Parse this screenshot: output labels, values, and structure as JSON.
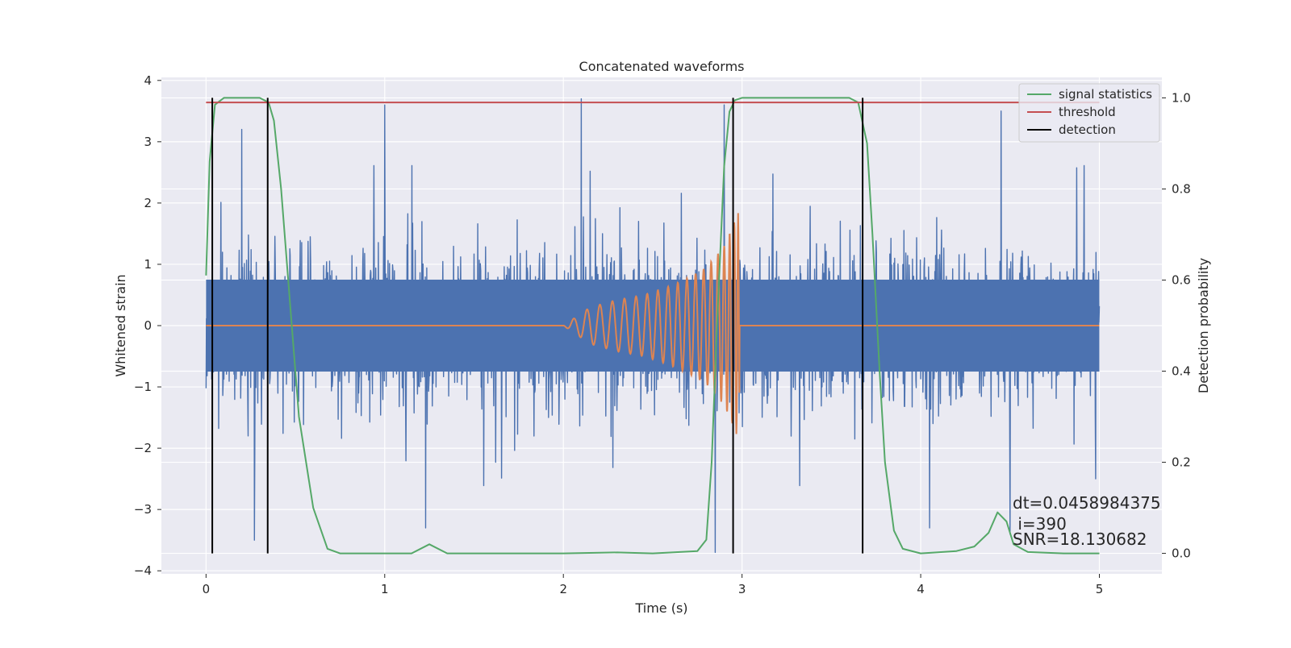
{
  "chart_data": {
    "type": "line",
    "title": "Concatenated waveforms",
    "xlabel": "Time (s)",
    "ylabel_left": "Whitened strain",
    "ylabel_right": "Detection probability",
    "xlim": [
      -0.25,
      5.35
    ],
    "ylim_left": [
      -4.05,
      4.05
    ],
    "ylim_right": [
      -0.045,
      1.045
    ],
    "x_ticks": [
      0,
      1,
      2,
      3,
      4,
      5
    ],
    "x_tick_labels": [
      "0",
      "1",
      "2",
      "3",
      "4",
      "5"
    ],
    "y_left_ticks": [
      4,
      3,
      2,
      1,
      0,
      -1,
      -2,
      -3,
      -4
    ],
    "y_left_tick_labels": [
      "4",
      "3",
      "2",
      "1",
      "0",
      "−1",
      "−2",
      "−3",
      "−4"
    ],
    "y_right_ticks": [
      1.0,
      0.8,
      0.6,
      0.4,
      0.2,
      0.0
    ],
    "y_right_tick_labels": [
      "1.0",
      "0.8",
      "0.6",
      "0.4",
      "0.2",
      "0.0"
    ],
    "grid": true,
    "legend_position": "top-right",
    "colors": {
      "strain": "#4c72b0",
      "waveform": "#dd8452",
      "signal_statistics": "#55a868",
      "threshold": "#c44e52",
      "detection": "#000000",
      "plot_bg": "#eaeaf2",
      "grid": "#ffffff"
    },
    "series": [
      {
        "name": "",
        "axis": "left",
        "description": "whitened strain noise",
        "x_range": [
          0,
          5
        ],
        "envelope": {
          "typical_peak": 1.8,
          "core": 0.75,
          "sample_extremes": [
            [
              0.2,
              3.2
            ],
            [
              0.27,
              -3.5
            ],
            [
              1.0,
              3.6
            ],
            [
              1.23,
              -3.3
            ],
            [
              2.1,
              3.7
            ],
            [
              2.85,
              -3.7
            ],
            [
              2.9,
              3.6
            ],
            [
              4.05,
              3.65
            ],
            [
              4.05,
              -3.3
            ],
            [
              4.45,
              3.5
            ],
            [
              4.5,
              -3.4
            ],
            [
              4.98,
              -2.5
            ]
          ]
        }
      },
      {
        "name": "",
        "axis": "left",
        "description": "injected chirp waveform",
        "x": [
          0,
          2.0,
          2.15,
          2.3,
          2.45,
          2.6,
          2.7,
          2.8,
          2.9,
          2.98,
          3.0,
          5.0
        ],
        "amplitude": [
          0,
          0,
          0.3,
          0.42,
          0.5,
          0.65,
          0.78,
          0.95,
          1.3,
          1.85,
          0,
          0
        ]
      },
      {
        "name": "signal statistics",
        "axis": "right",
        "x": [
          0.0,
          0.02,
          0.05,
          0.1,
          0.2,
          0.3,
          0.35,
          0.38,
          0.42,
          0.47,
          0.52,
          0.6,
          0.68,
          0.75,
          1.0,
          1.15,
          1.25,
          1.35,
          2.0,
          2.3,
          2.5,
          2.75,
          2.8,
          2.83,
          2.86,
          2.9,
          2.93,
          2.96,
          3.0,
          3.1,
          3.6,
          3.65,
          3.7,
          3.73,
          3.77,
          3.8,
          3.85,
          3.9,
          4.0,
          4.2,
          4.3,
          4.38,
          4.43,
          4.48,
          4.52,
          4.6,
          4.8,
          5.0
        ],
        "values": [
          0.61,
          0.86,
          0.985,
          1.0,
          1.0,
          1.0,
          0.99,
          0.95,
          0.8,
          0.55,
          0.3,
          0.1,
          0.01,
          0.0,
          0.0,
          0.0,
          0.02,
          0.0,
          0.0,
          0.002,
          0.0,
          0.005,
          0.03,
          0.2,
          0.5,
          0.85,
          0.97,
          0.995,
          1.0,
          1.0,
          1.0,
          0.99,
          0.9,
          0.7,
          0.4,
          0.2,
          0.05,
          0.01,
          0.0,
          0.005,
          0.015,
          0.045,
          0.09,
          0.07,
          0.02,
          0.003,
          0.0,
          0.0
        ]
      },
      {
        "name": "threshold",
        "axis": "right",
        "x": [
          0,
          5
        ],
        "values": [
          0.99,
          0.99
        ]
      },
      {
        "name": "detection",
        "axis": "right",
        "type": "vlines",
        "x": [
          0.035,
          0.345,
          2.95,
          3.675
        ],
        "ymin": 0.0,
        "ymax": 1.0
      }
    ],
    "annotations": [
      "dt=0.0458984375",
      " i=390",
      "SNR=18.130682"
    ]
  }
}
